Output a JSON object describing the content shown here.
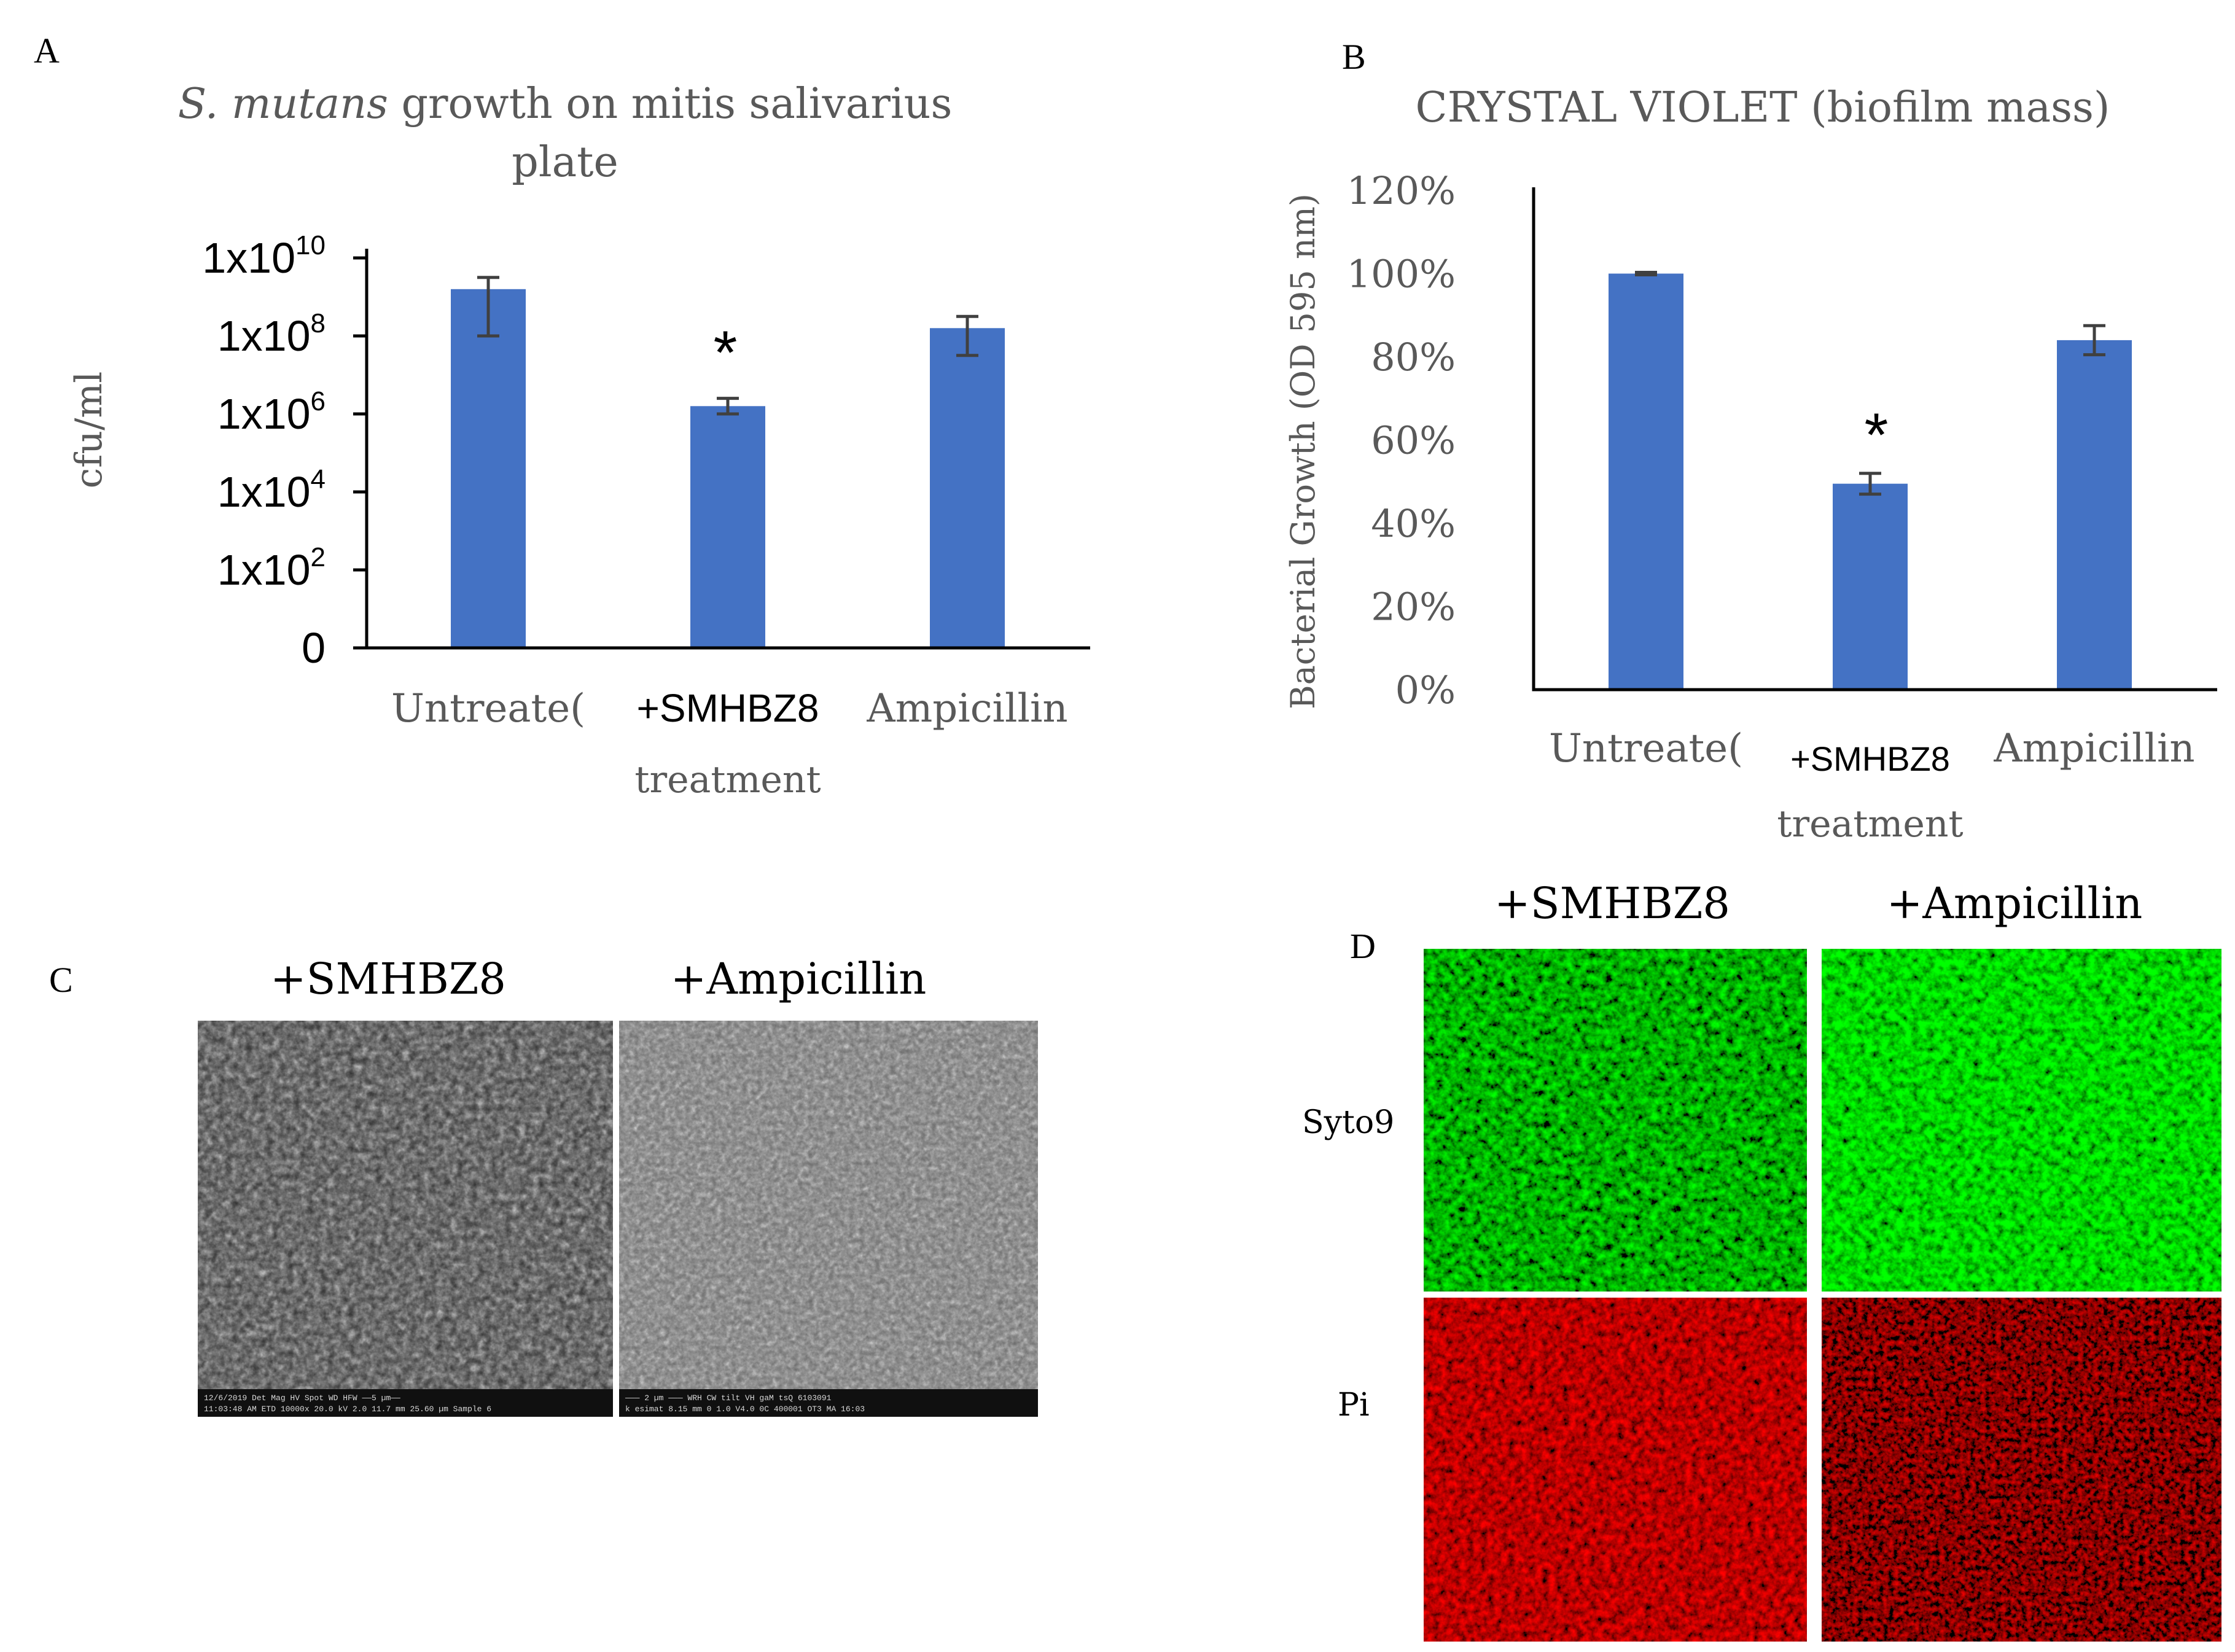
{
  "panels": {
    "a": {
      "letter": "A"
    },
    "b": {
      "letter": "B"
    },
    "c": {
      "letter": "C",
      "labels": [
        "+SMHBZ8",
        "+Ampicillin"
      ]
    },
    "d": {
      "letter": "D",
      "col_labels": [
        "+SMHBZ8",
        "+Ampicillin"
      ],
      "row_labels": [
        "Syto9",
        "Pi"
      ]
    }
  },
  "chart_data": [
    {
      "id": "A",
      "type": "bar",
      "title_italic": "S. mutans",
      "title_rest": " growth on mitis salivarius",
      "title_line2": "plate",
      "xlabel": "treatment",
      "ylabel": "cfu/ml",
      "yscale": "log10",
      "ylim": [
        0,
        10
      ],
      "ytick_labels": [
        {
          "base": "0",
          "exp": ""
        },
        {
          "base": "1x10",
          "exp": "2"
        },
        {
          "base": "1x10",
          "exp": "4"
        },
        {
          "base": "1x10",
          "exp": "6"
        },
        {
          "base": "1x10",
          "exp": "8"
        },
        {
          "base": "1x10",
          "exp": "10"
        }
      ],
      "categories": [
        "Untreated",
        "+SMHBZ8",
        "Ampicillin"
      ],
      "category_display": [
        "Untreate(",
        "+SMHBZ8",
        "Ampicillin"
      ],
      "values_log10": [
        9.2,
        6.2,
        8.2
      ],
      "error_log10": [
        {
          "lo": 8.0,
          "hi": 9.5
        },
        {
          "lo": 6.0,
          "hi": 6.4
        },
        {
          "lo": 7.5,
          "hi": 8.5
        }
      ],
      "significance": [
        "",
        "*",
        ""
      ],
      "bar_color": "#4472c4"
    },
    {
      "id": "B",
      "type": "bar",
      "title": "CRYSTAL VIOLET (biofilm mass)",
      "xlabel": "treatment",
      "ylabel": "Bacterial Growth (OD 595 nm)",
      "ylim": [
        0,
        120
      ],
      "yticks": [
        0,
        20,
        40,
        60,
        80,
        100,
        120
      ],
      "ytick_labels": [
        "0%",
        "20%",
        "40%",
        "60%",
        "80%",
        "100%",
        "120%"
      ],
      "categories": [
        "Untreated",
        "+SMHBZ8",
        "Ampicillin"
      ],
      "category_display": [
        "Untreate(",
        "+SMHBZ8",
        "Ampicillin"
      ],
      "values": [
        100,
        49.5,
        84
      ],
      "errors": [
        0.3,
        2.5,
        3.5
      ],
      "significance": [
        "",
        "*",
        ""
      ],
      "bar_color": "#4472c4"
    }
  ]
}
